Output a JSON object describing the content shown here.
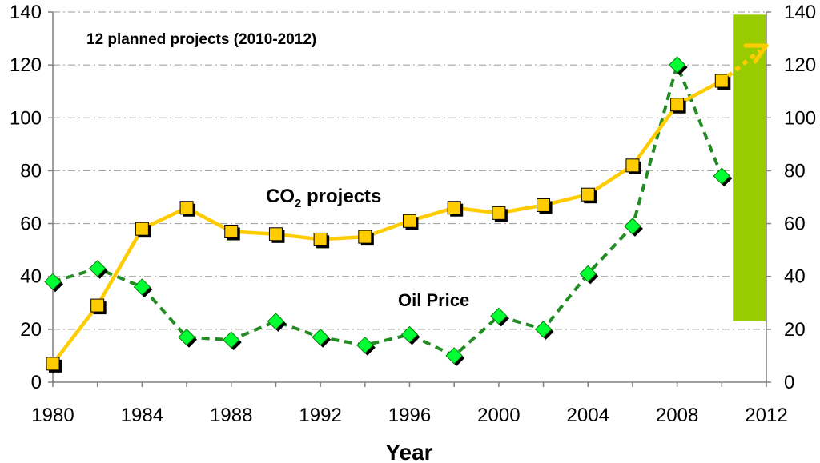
{
  "chart_data": {
    "type": "line",
    "title": "",
    "xlabel": "Year",
    "ylabel": "",
    "y2label": "",
    "xlim": [
      1980,
      2012
    ],
    "ylim": [
      0,
      140
    ],
    "y2lim": [
      0,
      140
    ],
    "x_ticks": [
      1980,
      1984,
      1988,
      1992,
      1996,
      2000,
      2004,
      2008,
      2012
    ],
    "y_ticks": [
      0,
      20,
      40,
      60,
      80,
      100,
      120,
      140
    ],
    "y2_ticks": [
      0,
      20,
      40,
      60,
      80,
      100,
      120,
      140
    ],
    "grid": "horizontal dashed",
    "series": [
      {
        "name": "CO2 projects",
        "label_main": "CO",
        "label_sub": "2",
        "label_rest": " projects",
        "color": "#FFCC00",
        "marker": "square",
        "line": "solid",
        "x": [
          1980,
          1982,
          1984,
          1986,
          1988,
          1990,
          1992,
          1994,
          1996,
          1998,
          2000,
          2002,
          2004,
          2006,
          2008,
          2010
        ],
        "values": [
          7,
          29,
          58,
          66,
          57,
          56,
          54,
          55,
          61,
          66,
          64,
          67,
          71,
          82,
          105,
          114
        ]
      },
      {
        "name": "Oil Price",
        "color": "#00FF33",
        "line_color": "#228B22",
        "marker": "diamond",
        "line": "dashed",
        "x": [
          1980,
          1982,
          1984,
          1986,
          1988,
          1990,
          1992,
          1994,
          1996,
          1998,
          2000,
          2002,
          2004,
          2006,
          2008,
          2010
        ],
        "values": [
          38,
          43,
          36,
          17,
          16,
          23,
          17,
          14,
          18,
          10,
          25,
          20,
          41,
          59,
          120,
          78
        ]
      }
    ],
    "projection": {
      "from": [
        2010,
        114
      ],
      "to": [
        2012,
        127
      ],
      "style": "dotted arrow"
    },
    "highlight_band": {
      "x_range": [
        2010.5,
        2012
      ],
      "y_range": [
        23,
        139
      ],
      "color": "#99CC00"
    },
    "annotations": {
      "planned": "12 planned projects (2010-2012)"
    }
  }
}
